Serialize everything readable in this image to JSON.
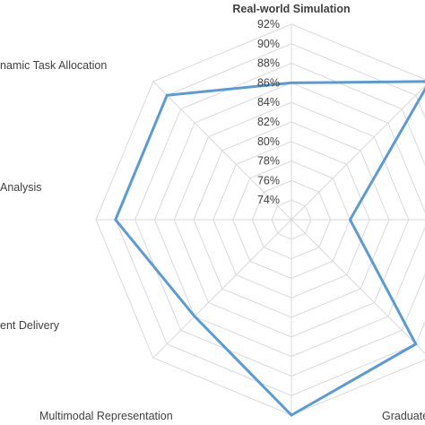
{
  "chart_data": {
    "type": "radar",
    "axes": [
      "Real-world Simulation",
      "",
      "",
      "Graduated",
      "Multimodal Representation",
      "ent Delivery",
      "Analysis",
      "namic Task Allocation"
    ],
    "tick_labels": [
      "74%",
      "76%",
      "78%",
      "80%",
      "82%",
      "84%",
      "86%",
      "88%",
      "90%",
      "92%"
    ],
    "range": [
      72,
      92
    ],
    "ticks": [
      74,
      76,
      78,
      80,
      82,
      84,
      86,
      88,
      90,
      92
    ],
    "values": [
      86,
      92,
      78,
      90,
      92,
      86,
      90,
      90
    ],
    "series_color": "#5b9bd5",
    "grid_color": "#d9d9d9",
    "grid": true
  }
}
